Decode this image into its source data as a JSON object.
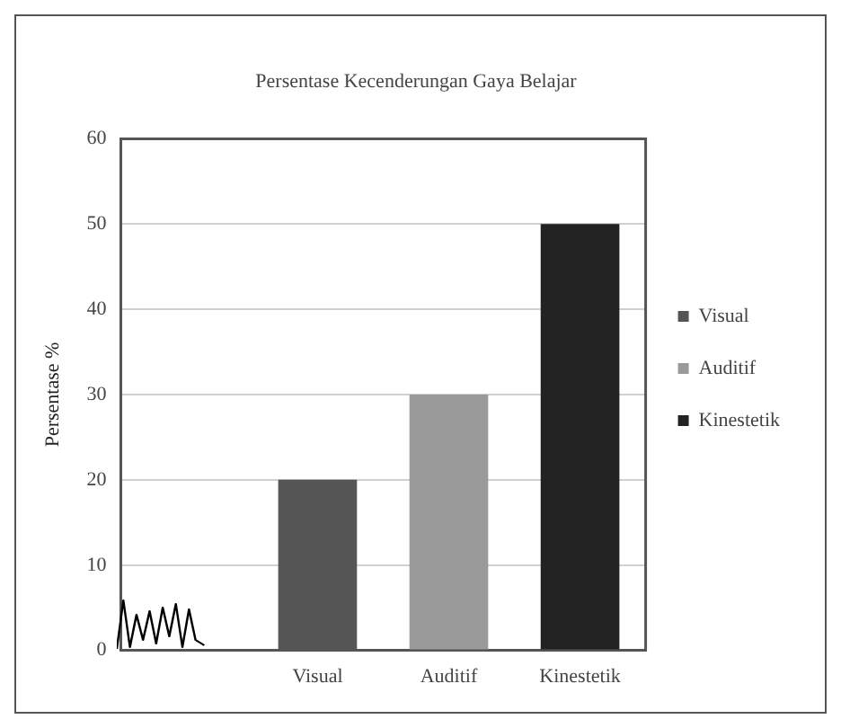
{
  "chart_data": {
    "type": "bar",
    "title": "Persentase Kecenderungan Gaya Belajar",
    "ylabel": "Persentase %",
    "categories": [
      null,
      "Visual",
      "Auditif",
      "Kinestetik"
    ],
    "series": [
      {
        "name": "Visual",
        "color": "#555555",
        "values": [
          null,
          20,
          null,
          null
        ]
      },
      {
        "name": "Auditif",
        "color": "#9a9a9a",
        "values": [
          null,
          null,
          30,
          null
        ]
      },
      {
        "name": "Kinestetik",
        "color": "#222222",
        "values": [
          null,
          null,
          null,
          50
        ]
      }
    ],
    "ylim": [
      0,
      60
    ],
    "yticks": [
      0,
      10,
      20,
      30,
      40,
      50,
      60
    ],
    "grid": "y",
    "legend": "right"
  }
}
